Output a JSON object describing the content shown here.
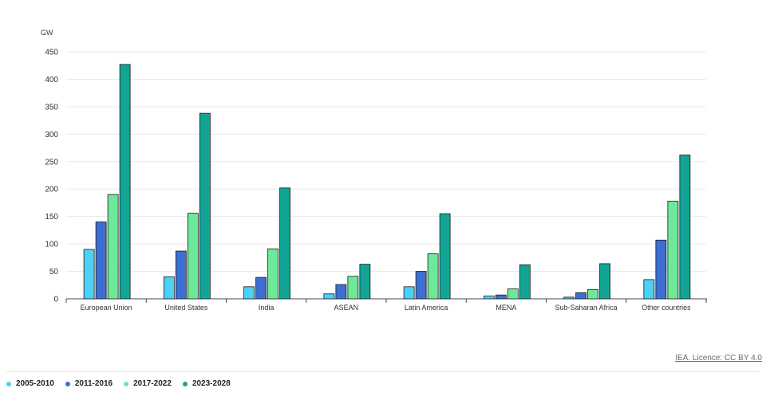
{
  "chart_data": {
    "type": "bar",
    "ylabel": "GW",
    "ylim": [
      0,
      450
    ],
    "yticks": [
      0,
      50,
      100,
      150,
      200,
      250,
      300,
      350,
      400,
      450
    ],
    "grid": true,
    "legend_position": "bottom-left",
    "categories": [
      "European Union",
      "United States",
      "India",
      "ASEAN",
      "Latin America",
      "MENA",
      "Sub-Saharan Africa",
      "Other countries"
    ],
    "series": [
      {
        "name": "2005-2010",
        "color": "#4dd0f5",
        "values": [
          90,
          40,
          22,
          9,
          22,
          5,
          3,
          35
        ]
      },
      {
        "name": "2011-2016",
        "color": "#3c6fd1",
        "values": [
          140,
          87,
          39,
          26,
          50,
          7,
          11,
          107
        ]
      },
      {
        "name": "2017-2022",
        "color": "#6ee89a",
        "values": [
          190,
          156,
          91,
          41,
          82,
          18,
          17,
          178
        ]
      },
      {
        "name": "2023-2028",
        "color": "#12a596",
        "values": [
          427,
          338,
          202,
          63,
          155,
          62,
          64,
          262
        ]
      }
    ]
  },
  "credit": "IEA. Licence: CC BY 4.0"
}
